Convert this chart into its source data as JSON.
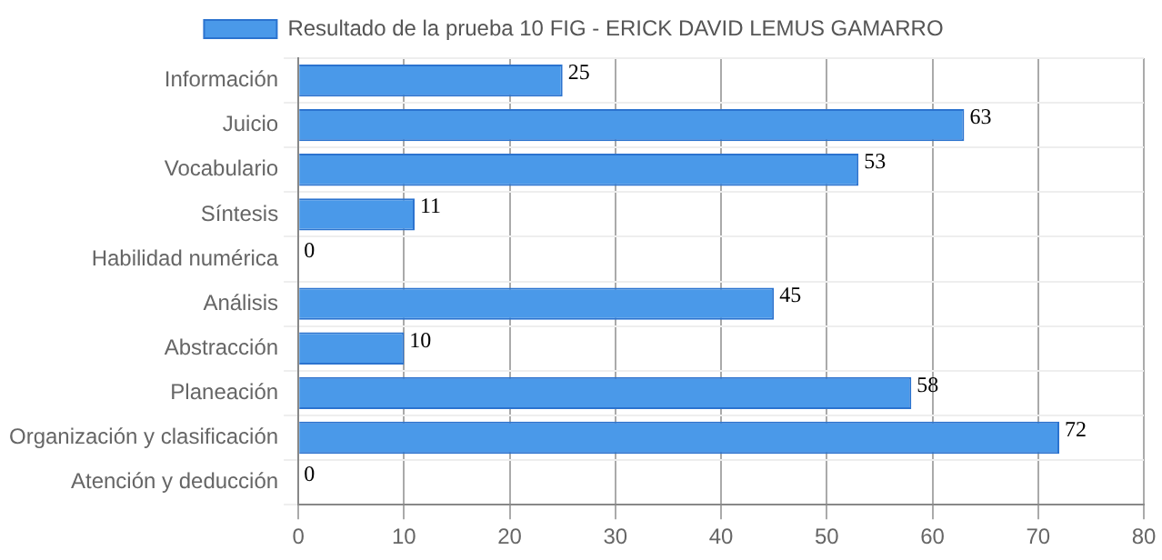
{
  "chart_data": {
    "type": "bar",
    "orientation": "horizontal",
    "categories": [
      "Información",
      "Juicio",
      "Vocabulario",
      "Síntesis",
      "Habilidad numérica",
      "Análisis",
      "Abstracción",
      "Planeación",
      "Organización y clasificación",
      "Atención y deducción"
    ],
    "series": [
      {
        "name": "Resultado de la prueba 10 FIG - ERICK DAVID LEMUS GAMARRO",
        "color": "#4a99e9",
        "values": [
          25,
          63,
          53,
          11,
          0,
          45,
          10,
          58,
          72,
          0
        ]
      }
    ],
    "xlim": [
      0,
      80
    ],
    "xticks": [
      0,
      10,
      20,
      30,
      40,
      50,
      60,
      70,
      80
    ],
    "grid": true,
    "legend": "top",
    "data_labels": true
  }
}
